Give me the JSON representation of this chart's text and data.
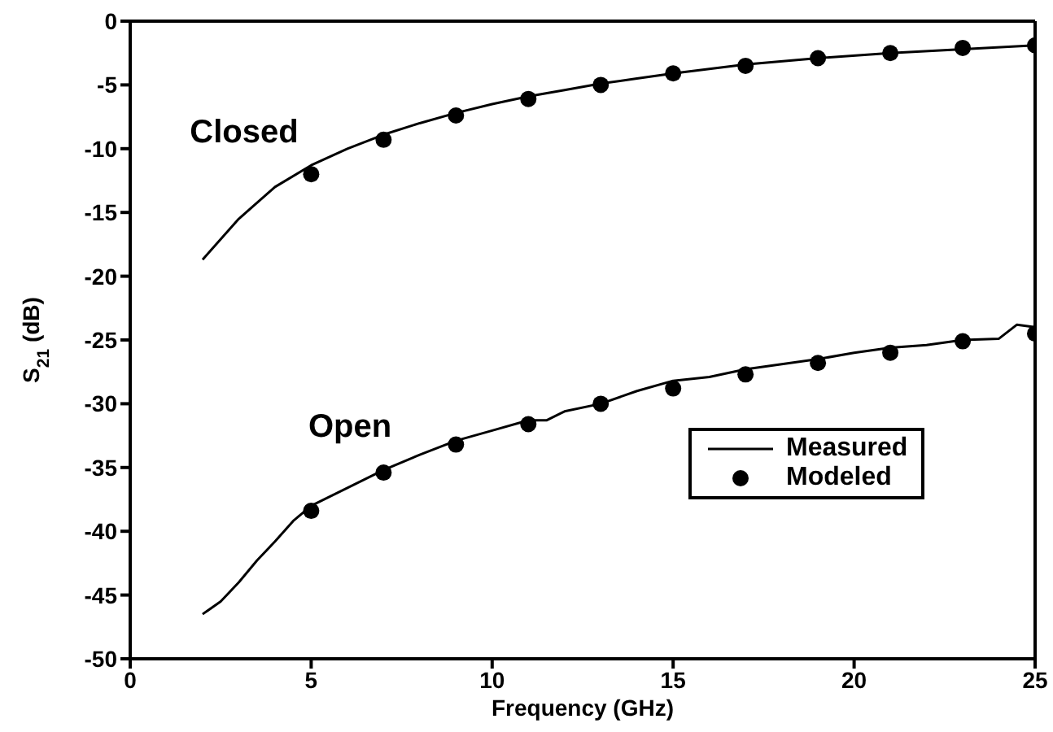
{
  "chart_data": {
    "type": "line",
    "xlabel": "Frequency (GHz)",
    "ylabel": "S$_{21}$ (dB)",
    "xlim": [
      0,
      25
    ],
    "xticks": [
      0,
      5,
      10,
      15,
      20,
      25
    ],
    "ylim": [
      -50,
      0
    ],
    "yticks": [
      -50,
      -45,
      -40,
      -35,
      -30,
      -25,
      -20,
      -15,
      -10,
      -5,
      0
    ],
    "legend": "right",
    "line_style": "solid",
    "series": [
      {
        "name": "Measured",
        "color": "#000000",
        "marker": "none",
        "x": [
          2,
          3,
          4,
          5,
          6,
          7,
          8,
          9,
          10,
          11,
          12,
          13,
          14,
          15,
          17,
          19,
          21,
          23,
          25
        ],
        "values": [
          -18.7,
          -15.5,
          -13,
          -11.3,
          -10,
          -8.9,
          -8,
          -7.2,
          -6.5,
          -5.9,
          -5.4,
          -4.9,
          -4.5,
          -4.1,
          -3.4,
          -2.9,
          -2.5,
          -2.2,
          -1.9
        ]
      },
      {
        "name": "Modeled",
        "type": "scatter",
        "color": "#000000",
        "marker": "circle",
        "x": [
          5,
          7,
          9,
          11,
          13,
          15,
          17,
          19,
          21,
          23,
          25
        ],
        "values": [
          -12,
          -9.3,
          -7.4,
          -6.1,
          -5,
          -4.1,
          -3.5,
          -2.9,
          -2.5,
          -2.1,
          -1.9
        ]
      },
      {
        "color": "#000000",
        "marker": "none",
        "x": [
          2,
          2.5,
          3,
          3.5,
          4,
          4.5,
          5,
          6,
          7,
          8,
          9,
          10,
          11,
          11.5,
          12,
          13,
          14,
          15,
          16,
          17,
          18,
          19,
          20,
          21,
          22,
          23,
          24,
          24.5,
          25
        ],
        "values": [
          -46.5,
          -45.5,
          -44,
          -42.3,
          -40.8,
          -39.2,
          -38,
          -36.6,
          -35.2,
          -34,
          -32.9,
          -32.1,
          -31.3,
          -31.3,
          -30.6,
          -30,
          -29,
          -28.2,
          -27.9,
          -27.3,
          -26.9,
          -26.5,
          -26,
          -25.6,
          -25.4,
          -25,
          -24.9,
          -23.8,
          -24
        ]
      },
      {
        "type": "scatter",
        "color": "#000000",
        "marker": "circle",
        "x": [
          5,
          7,
          9,
          11,
          13,
          15,
          17,
          19,
          21,
          23,
          25
        ],
        "values": [
          -38.4,
          -35.4,
          -33.2,
          -31.6,
          -30,
          -28.8,
          -27.7,
          -26.8,
          -26,
          -25.1,
          -24.5
        ]
      }
    ],
    "annotations": [
      "Closed",
      "Open"
    ]
  }
}
